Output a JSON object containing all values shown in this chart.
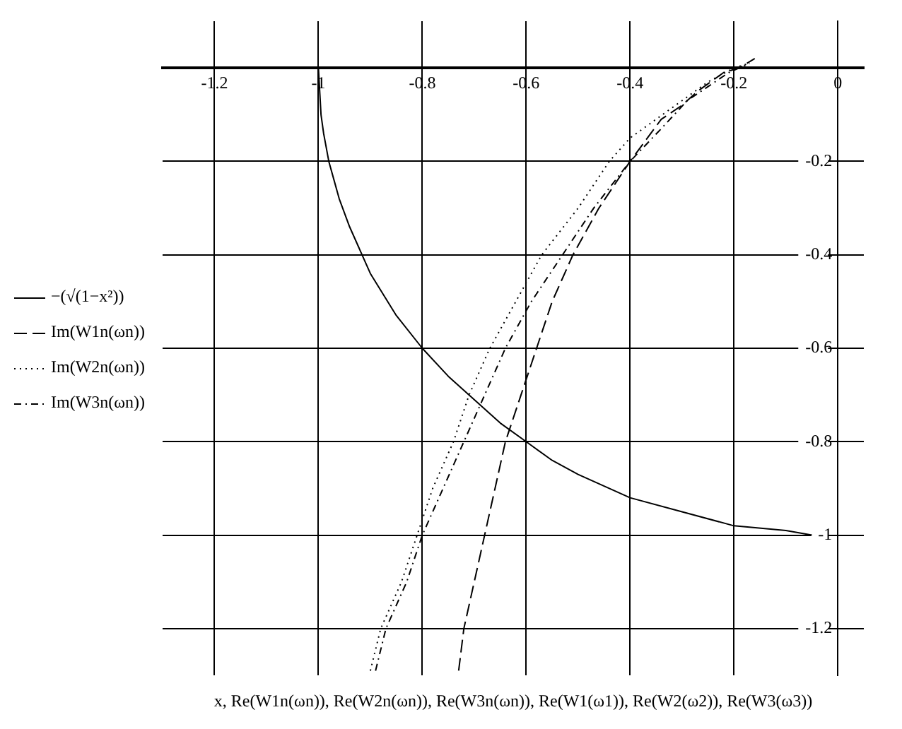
{
  "chart_data": {
    "type": "line",
    "xlabel": "x, Re(W1n(ωn)), Re(W2n(ωn)), Re(W3n(ωn)), Re(W1(ω1)), Re(W2(ω2)), Re(W3(ω3))",
    "xlim": [
      -1.3,
      0.05
    ],
    "ylim": [
      -1.3,
      0.1
    ],
    "xticks": [
      -1.2,
      -1,
      -0.8,
      -0.6,
      -0.4,
      -0.2,
      0
    ],
    "yticks": [
      -1.2,
      -1,
      -0.8,
      -0.6,
      -0.4,
      -0.2
    ],
    "grid": true,
    "legend": "left",
    "marker": "none",
    "series": [
      {
        "name": "−(√(1−x²))",
        "color": "#000000",
        "line_style": "solid",
        "x": [
          -1,
          -0.995,
          -0.99,
          -0.98,
          -0.97,
          -0.96,
          -0.94,
          -0.92,
          -0.9,
          -0.85,
          -0.8,
          -0.75,
          -0.7,
          -0.65,
          -0.6,
          -0.55,
          -0.5,
          -0.4,
          -0.3,
          -0.2,
          -0.1,
          -0.05
        ],
        "values": [
          0,
          -0.1,
          -0.14,
          -0.2,
          -0.24,
          -0.28,
          -0.34,
          -0.39,
          -0.44,
          -0.53,
          -0.6,
          -0.66,
          -0.71,
          -0.76,
          -0.8,
          -0.84,
          -0.87,
          -0.92,
          -0.95,
          -0.98,
          -0.99,
          -1
        ]
      },
      {
        "name": "Im(W1n(ωn))",
        "color": "#000000",
        "line_style": "dashed",
        "x": [
          -0.73,
          -0.72,
          -0.7,
          -0.68,
          -0.66,
          -0.64,
          -0.61,
          -0.58,
          -0.55,
          -0.51,
          -0.46,
          -0.4,
          -0.34,
          -0.3,
          -0.27,
          -0.22,
          -0.19,
          -0.16
        ],
        "values": [
          -1.29,
          -1.2,
          -1.1,
          -1,
          -0.9,
          -0.8,
          -0.7,
          -0.6,
          -0.5,
          -0.4,
          -0.3,
          -0.2,
          -0.11,
          -0.08,
          -0.05,
          -0.01,
          0,
          0.02
        ]
      },
      {
        "name": "Im(W2n(ωn))",
        "color": "#000000",
        "line_style": "dotted",
        "x": [
          -0.9,
          -0.88,
          -0.84,
          -0.81,
          -0.78,
          -0.74,
          -0.71,
          -0.67,
          -0.62,
          -0.57,
          -0.5,
          -0.44,
          -0.4,
          -0.3,
          -0.25,
          -0.2,
          -0.17
        ],
        "values": [
          -1.29,
          -1.2,
          -1.1,
          -1,
          -0.9,
          -0.8,
          -0.7,
          -0.6,
          -0.5,
          -0.4,
          -0.3,
          -0.2,
          -0.15,
          -0.07,
          -0.03,
          0,
          0.01
        ]
      },
      {
        "name": "Im(W3n(ωn))",
        "color": "#000000",
        "line_style": "dashdot",
        "x": [
          -0.89,
          -0.87,
          -0.83,
          -0.8,
          -0.76,
          -0.72,
          -0.68,
          -0.64,
          -0.59,
          -0.53,
          -0.47,
          -0.4,
          -0.34,
          -0.29,
          -0.25,
          -0.21,
          -0.17
        ],
        "values": [
          -1.29,
          -1.2,
          -1.1,
          -1,
          -0.9,
          -0.8,
          -0.7,
          -0.6,
          -0.5,
          -0.4,
          -0.3,
          -0.2,
          -0.13,
          -0.07,
          -0.04,
          -0.01,
          0.01
        ]
      }
    ]
  }
}
